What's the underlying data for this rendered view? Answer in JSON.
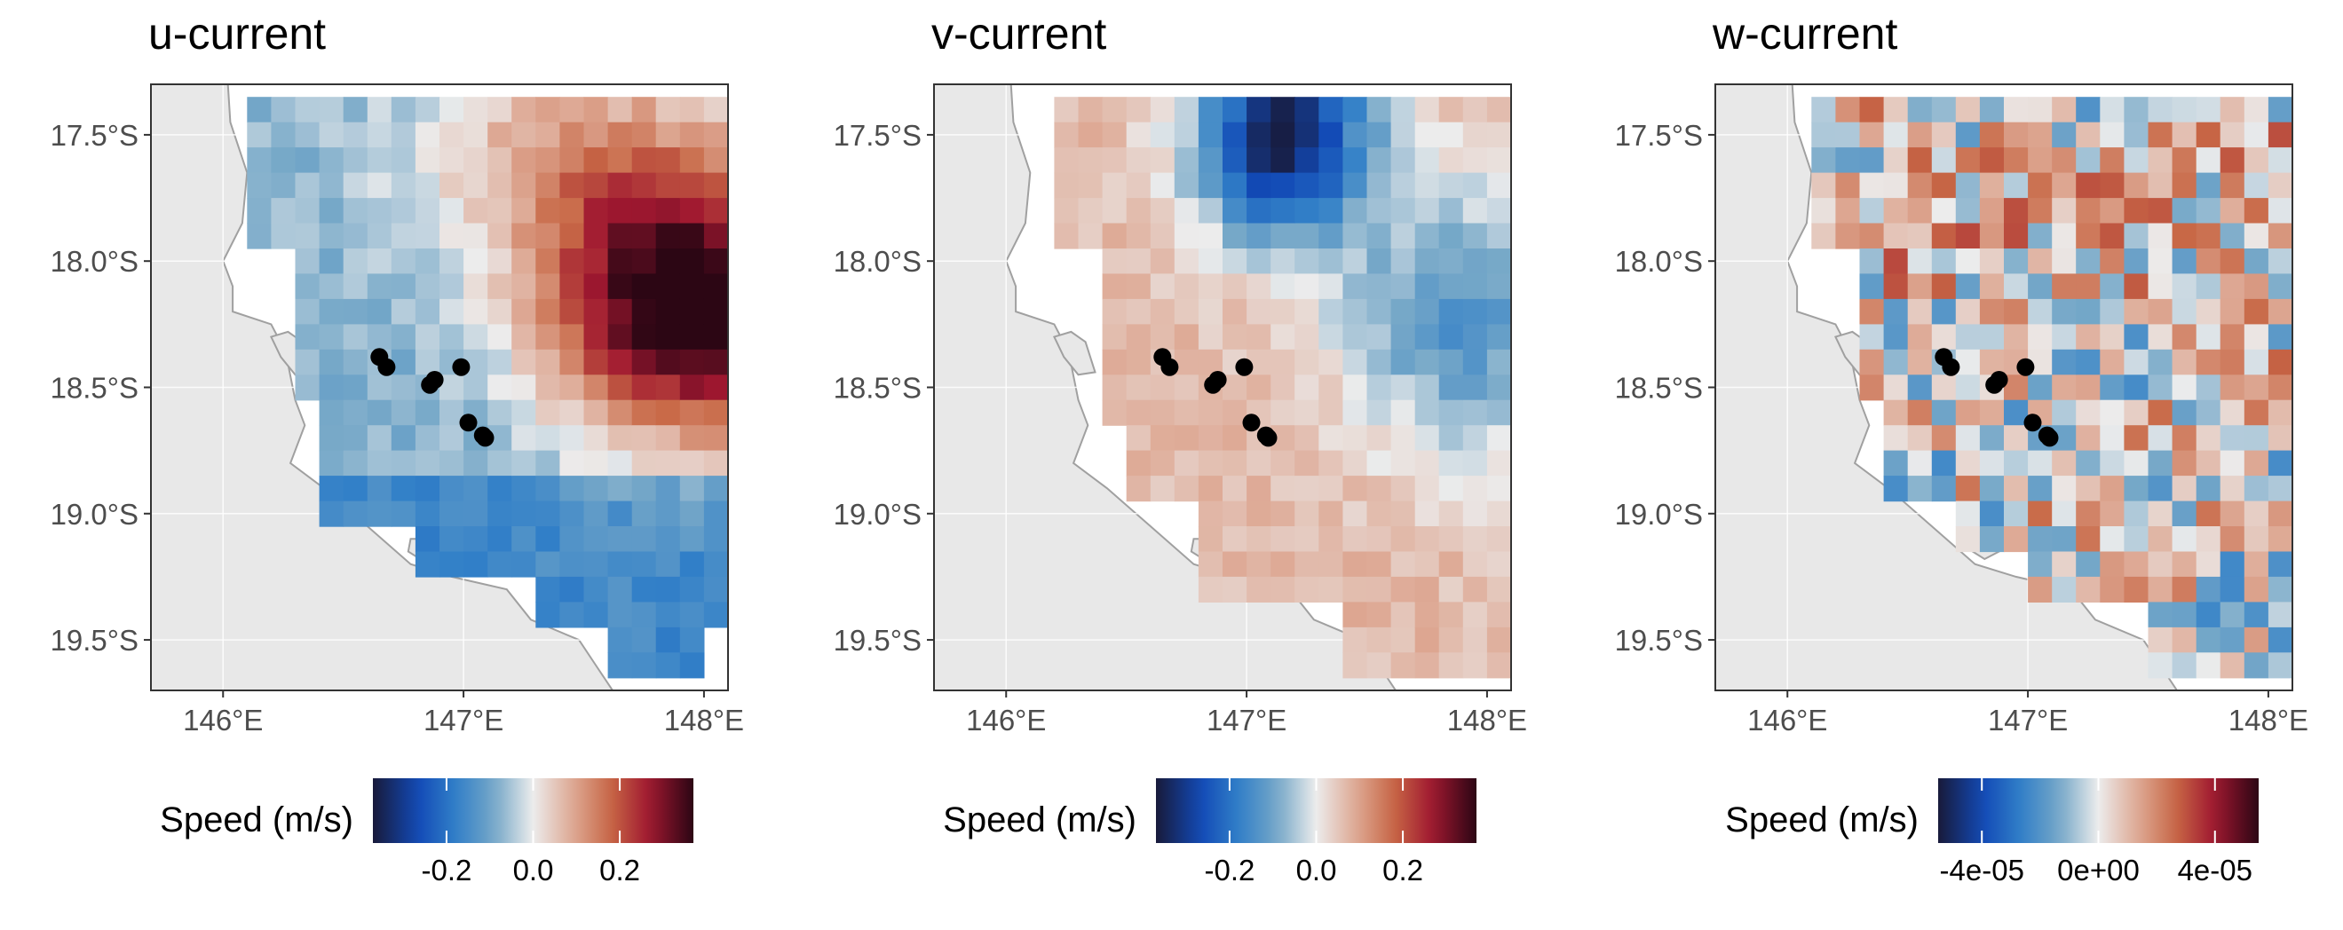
{
  "chart_data": [
    {
      "type": "heatmap",
      "title": "u-current",
      "lon_ticks": [
        "146°E",
        "147°E",
        "148°E"
      ],
      "lat_ticks": [
        "17.5°S",
        "18.0°S",
        "18.5°S",
        "19.0°S",
        "19.5°S"
      ],
      "xlim": [
        145.7,
        148.1
      ],
      "ylim": [
        -19.7,
        -17.3
      ],
      "legend": {
        "title": "Speed (m/s)",
        "ticks": [
          "-0.2",
          "0.0",
          "0.2"
        ],
        "tick_values": [
          -0.2,
          0.0,
          0.2
        ],
        "range": [
          -0.37,
          0.37
        ],
        "placement": "bottom"
      },
      "grid": true,
      "palette": "blue-white-red diverging",
      "points": [
        [
          146.65,
          -18.38
        ],
        [
          146.68,
          -18.42
        ],
        [
          146.86,
          -18.49
        ],
        [
          146.88,
          -18.47
        ],
        [
          146.99,
          -18.42
        ],
        [
          147.02,
          -18.64
        ],
        [
          147.08,
          -18.69
        ],
        [
          147.09,
          -18.7
        ]
      ]
    },
    {
      "type": "heatmap",
      "title": "v-current",
      "lon_ticks": [
        "146°E",
        "147°E",
        "148°E"
      ],
      "lat_ticks": [
        "17.5°S",
        "18.0°S",
        "18.5°S",
        "19.0°S",
        "19.5°S"
      ],
      "xlim": [
        145.7,
        148.1
      ],
      "ylim": [
        -19.7,
        -17.3
      ],
      "legend": {
        "title": "Speed (m/s)",
        "ticks": [
          "-0.2",
          "0.0",
          "0.2"
        ],
        "tick_values": [
          -0.2,
          0.0,
          0.2
        ],
        "range": [
          -0.37,
          0.37
        ],
        "placement": "bottom"
      },
      "grid": true,
      "palette": "blue-white-red diverging",
      "points": [
        [
          146.65,
          -18.38
        ],
        [
          146.68,
          -18.42
        ],
        [
          146.86,
          -18.49
        ],
        [
          146.88,
          -18.47
        ],
        [
          146.99,
          -18.42
        ],
        [
          147.02,
          -18.64
        ],
        [
          147.08,
          -18.69
        ],
        [
          147.09,
          -18.7
        ]
      ]
    },
    {
      "type": "heatmap",
      "title": "w-current",
      "lon_ticks": [
        "146°E",
        "147°E",
        "148°E"
      ],
      "lat_ticks": [
        "17.5°S",
        "18.0°S",
        "18.5°S",
        "19.0°S",
        "19.5°S"
      ],
      "xlim": [
        145.7,
        148.1
      ],
      "ylim": [
        -19.7,
        -17.3
      ],
      "legend": {
        "title": "Speed (m/s)",
        "ticks": [
          "-4e-05",
          "0e+00",
          "4e-05"
        ],
        "tick_values": [
          -4e-05,
          0,
          4e-05
        ],
        "range": [
          -5.5e-05,
          5.5e-05
        ],
        "placement": "bottom"
      },
      "grid": true,
      "palette": "blue-white-red diverging",
      "points": [
        [
          146.65,
          -18.38
        ],
        [
          146.68,
          -18.42
        ],
        [
          146.86,
          -18.49
        ],
        [
          146.88,
          -18.47
        ],
        [
          146.99,
          -18.42
        ],
        [
          147.02,
          -18.64
        ],
        [
          147.08,
          -18.69
        ],
        [
          147.09,
          -18.7
        ]
      ]
    }
  ]
}
